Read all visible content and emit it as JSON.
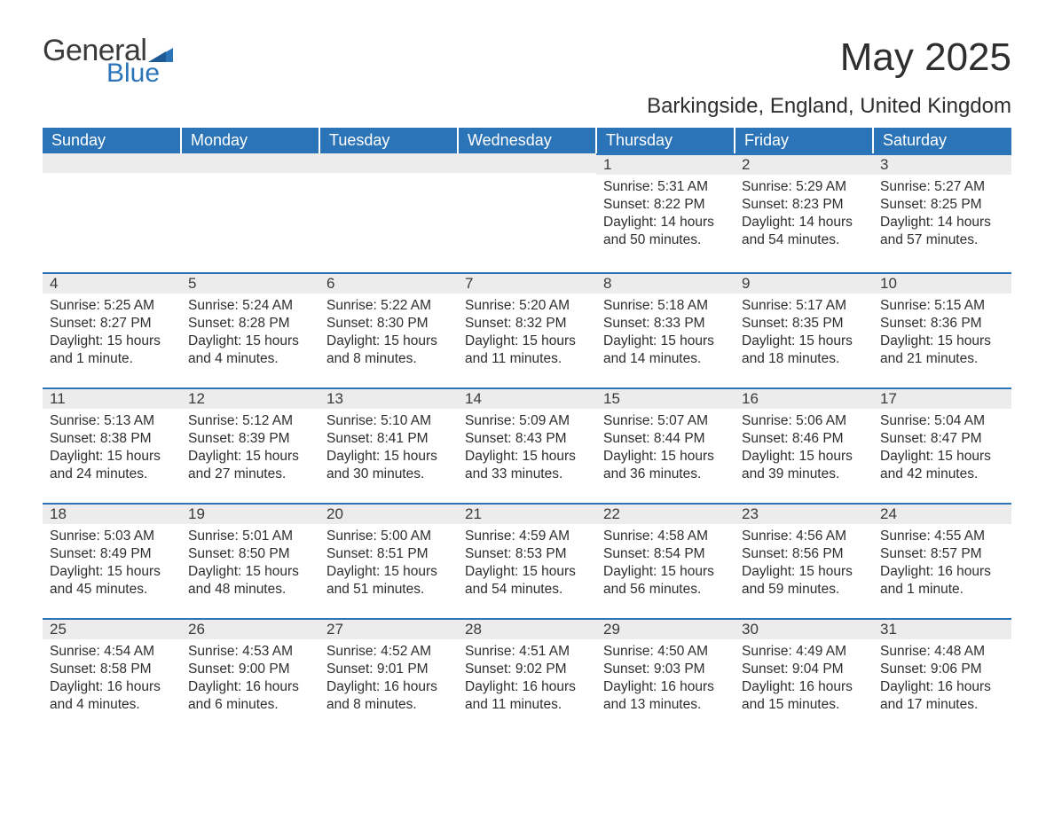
{
  "logo": {
    "text1": "General",
    "text2": "Blue",
    "tri_color": "#2b74b8"
  },
  "title": "May 2025",
  "location": "Barkingside, England, United Kingdom",
  "colors": {
    "header_bg": "#2b74b8",
    "header_fg": "#ffffff",
    "daynum_bg": "#ececec",
    "daynum_border": "#2b74b8",
    "text": "#2e2e2e",
    "page_bg": "#ffffff"
  },
  "day_headers": [
    "Sunday",
    "Monday",
    "Tuesday",
    "Wednesday",
    "Thursday",
    "Friday",
    "Saturday"
  ],
  "weeks": [
    [
      {
        "day": "",
        "sunrise": "",
        "sunset": "",
        "daylight": ""
      },
      {
        "day": "",
        "sunrise": "",
        "sunset": "",
        "daylight": ""
      },
      {
        "day": "",
        "sunrise": "",
        "sunset": "",
        "daylight": ""
      },
      {
        "day": "",
        "sunrise": "",
        "sunset": "",
        "daylight": ""
      },
      {
        "day": "1",
        "sunrise": "Sunrise: 5:31 AM",
        "sunset": "Sunset: 8:22 PM",
        "daylight": "Daylight: 14 hours and 50 minutes."
      },
      {
        "day": "2",
        "sunrise": "Sunrise: 5:29 AM",
        "sunset": "Sunset: 8:23 PM",
        "daylight": "Daylight: 14 hours and 54 minutes."
      },
      {
        "day": "3",
        "sunrise": "Sunrise: 5:27 AM",
        "sunset": "Sunset: 8:25 PM",
        "daylight": "Daylight: 14 hours and 57 minutes."
      }
    ],
    [
      {
        "day": "4",
        "sunrise": "Sunrise: 5:25 AM",
        "sunset": "Sunset: 8:27 PM",
        "daylight": "Daylight: 15 hours and 1 minute."
      },
      {
        "day": "5",
        "sunrise": "Sunrise: 5:24 AM",
        "sunset": "Sunset: 8:28 PM",
        "daylight": "Daylight: 15 hours and 4 minutes."
      },
      {
        "day": "6",
        "sunrise": "Sunrise: 5:22 AM",
        "sunset": "Sunset: 8:30 PM",
        "daylight": "Daylight: 15 hours and 8 minutes."
      },
      {
        "day": "7",
        "sunrise": "Sunrise: 5:20 AM",
        "sunset": "Sunset: 8:32 PM",
        "daylight": "Daylight: 15 hours and 11 minutes."
      },
      {
        "day": "8",
        "sunrise": "Sunrise: 5:18 AM",
        "sunset": "Sunset: 8:33 PM",
        "daylight": "Daylight: 15 hours and 14 minutes."
      },
      {
        "day": "9",
        "sunrise": "Sunrise: 5:17 AM",
        "sunset": "Sunset: 8:35 PM",
        "daylight": "Daylight: 15 hours and 18 minutes."
      },
      {
        "day": "10",
        "sunrise": "Sunrise: 5:15 AM",
        "sunset": "Sunset: 8:36 PM",
        "daylight": "Daylight: 15 hours and 21 minutes."
      }
    ],
    [
      {
        "day": "11",
        "sunrise": "Sunrise: 5:13 AM",
        "sunset": "Sunset: 8:38 PM",
        "daylight": "Daylight: 15 hours and 24 minutes."
      },
      {
        "day": "12",
        "sunrise": "Sunrise: 5:12 AM",
        "sunset": "Sunset: 8:39 PM",
        "daylight": "Daylight: 15 hours and 27 minutes."
      },
      {
        "day": "13",
        "sunrise": "Sunrise: 5:10 AM",
        "sunset": "Sunset: 8:41 PM",
        "daylight": "Daylight: 15 hours and 30 minutes."
      },
      {
        "day": "14",
        "sunrise": "Sunrise: 5:09 AM",
        "sunset": "Sunset: 8:43 PM",
        "daylight": "Daylight: 15 hours and 33 minutes."
      },
      {
        "day": "15",
        "sunrise": "Sunrise: 5:07 AM",
        "sunset": "Sunset: 8:44 PM",
        "daylight": "Daylight: 15 hours and 36 minutes."
      },
      {
        "day": "16",
        "sunrise": "Sunrise: 5:06 AM",
        "sunset": "Sunset: 8:46 PM",
        "daylight": "Daylight: 15 hours and 39 minutes."
      },
      {
        "day": "17",
        "sunrise": "Sunrise: 5:04 AM",
        "sunset": "Sunset: 8:47 PM",
        "daylight": "Daylight: 15 hours and 42 minutes."
      }
    ],
    [
      {
        "day": "18",
        "sunrise": "Sunrise: 5:03 AM",
        "sunset": "Sunset: 8:49 PM",
        "daylight": "Daylight: 15 hours and 45 minutes."
      },
      {
        "day": "19",
        "sunrise": "Sunrise: 5:01 AM",
        "sunset": "Sunset: 8:50 PM",
        "daylight": "Daylight: 15 hours and 48 minutes."
      },
      {
        "day": "20",
        "sunrise": "Sunrise: 5:00 AM",
        "sunset": "Sunset: 8:51 PM",
        "daylight": "Daylight: 15 hours and 51 minutes."
      },
      {
        "day": "21",
        "sunrise": "Sunrise: 4:59 AM",
        "sunset": "Sunset: 8:53 PM",
        "daylight": "Daylight: 15 hours and 54 minutes."
      },
      {
        "day": "22",
        "sunrise": "Sunrise: 4:58 AM",
        "sunset": "Sunset: 8:54 PM",
        "daylight": "Daylight: 15 hours and 56 minutes."
      },
      {
        "day": "23",
        "sunrise": "Sunrise: 4:56 AM",
        "sunset": "Sunset: 8:56 PM",
        "daylight": "Daylight: 15 hours and 59 minutes."
      },
      {
        "day": "24",
        "sunrise": "Sunrise: 4:55 AM",
        "sunset": "Sunset: 8:57 PM",
        "daylight": "Daylight: 16 hours and 1 minute."
      }
    ],
    [
      {
        "day": "25",
        "sunrise": "Sunrise: 4:54 AM",
        "sunset": "Sunset: 8:58 PM",
        "daylight": "Daylight: 16 hours and 4 minutes."
      },
      {
        "day": "26",
        "sunrise": "Sunrise: 4:53 AM",
        "sunset": "Sunset: 9:00 PM",
        "daylight": "Daylight: 16 hours and 6 minutes."
      },
      {
        "day": "27",
        "sunrise": "Sunrise: 4:52 AM",
        "sunset": "Sunset: 9:01 PM",
        "daylight": "Daylight: 16 hours and 8 minutes."
      },
      {
        "day": "28",
        "sunrise": "Sunrise: 4:51 AM",
        "sunset": "Sunset: 9:02 PM",
        "daylight": "Daylight: 16 hours and 11 minutes."
      },
      {
        "day": "29",
        "sunrise": "Sunrise: 4:50 AM",
        "sunset": "Sunset: 9:03 PM",
        "daylight": "Daylight: 16 hours and 13 minutes."
      },
      {
        "day": "30",
        "sunrise": "Sunrise: 4:49 AM",
        "sunset": "Sunset: 9:04 PM",
        "daylight": "Daylight: 16 hours and 15 minutes."
      },
      {
        "day": "31",
        "sunrise": "Sunrise: 4:48 AM",
        "sunset": "Sunset: 9:06 PM",
        "daylight": "Daylight: 16 hours and 17 minutes."
      }
    ]
  ]
}
